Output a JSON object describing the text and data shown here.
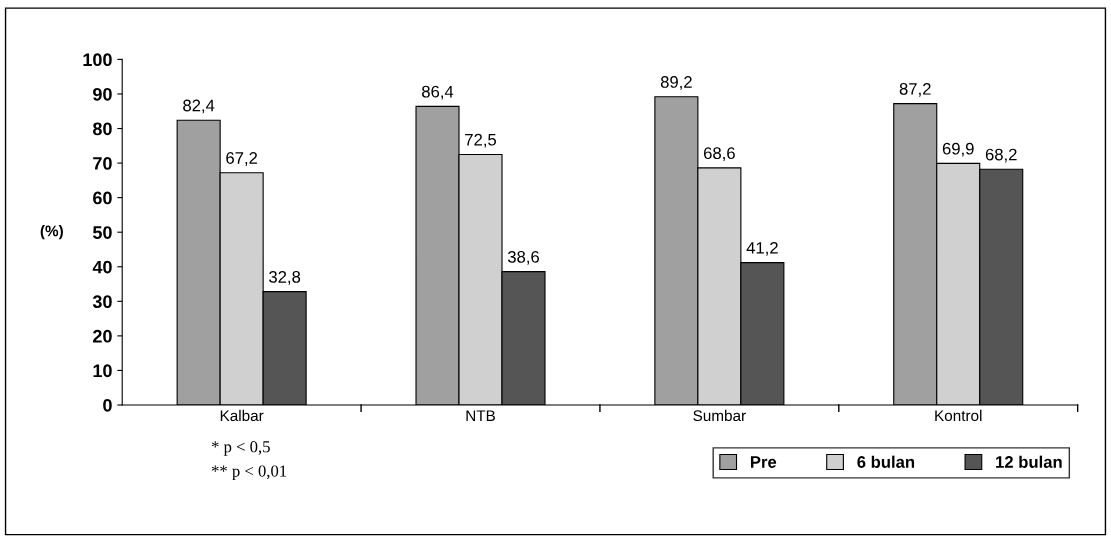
{
  "chart_data": {
    "type": "bar",
    "ylabel": "(%)",
    "categories": [
      "Kalbar",
      "NTB",
      "Sumbar",
      "Kontrol"
    ],
    "series": [
      {
        "name": "Pre",
        "color": "#a0a0a0",
        "values": [
          82.4,
          86.4,
          89.2,
          87.2
        ],
        "value_labels": [
          "82,4",
          "86,4",
          "89,2",
          "87,2"
        ]
      },
      {
        "name": "6 bulan",
        "color": "#d0d0d0",
        "values": [
          67.2,
          72.5,
          68.6,
          69.9
        ],
        "value_labels": [
          "67,2",
          "72,5",
          "68,6",
          "69,9"
        ]
      },
      {
        "name": "12 bulan",
        "color": "#555555",
        "values": [
          32.8,
          38.6,
          41.2,
          68.2
        ],
        "value_labels": [
          "32,8",
          "38,6",
          "41,2",
          "68,2"
        ]
      }
    ],
    "ylim": [
      0,
      100
    ],
    "yticks": [
      0,
      10,
      20,
      30,
      40,
      50,
      60,
      70,
      80,
      90,
      100
    ],
    "grid": false,
    "legend": "bottom right",
    "annotations": [
      "* p < 0,5",
      "** p < 0,01"
    ]
  }
}
